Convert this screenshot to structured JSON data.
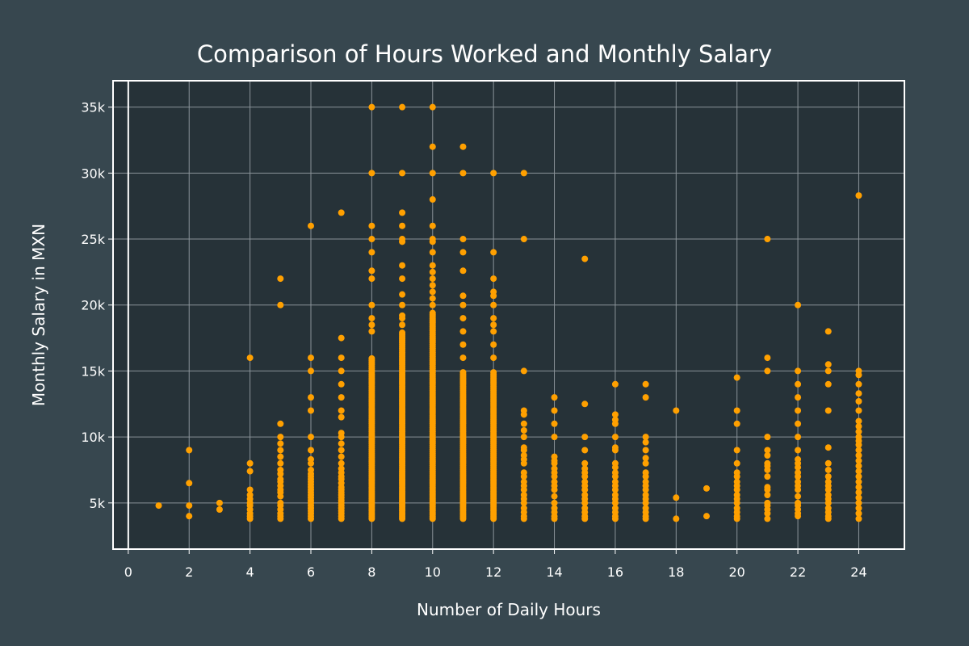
{
  "colors": {
    "page_background": "#37474f",
    "plot_background": "#263238",
    "marker": "#ffa000",
    "grid": "#8a9399",
    "axis": "#ffffff",
    "text": "#ffffff"
  },
  "chart_data": {
    "type": "scatter",
    "title": "Comparison of Hours Worked and Monthly Salary",
    "xlabel": "Number of Daily Hours",
    "ylabel": "Monthly Salary in MXN",
    "xlim": [
      -0.5,
      25.5
    ],
    "ylim": [
      1500,
      37000
    ],
    "x_ticks": [
      0,
      2,
      4,
      6,
      8,
      10,
      12,
      14,
      16,
      18,
      20,
      22,
      24
    ],
    "x_tick_labels": [
      "0",
      "2",
      "4",
      "6",
      "8",
      "10",
      "12",
      "14",
      "16",
      "18",
      "20",
      "22",
      "24"
    ],
    "y_ticks": [
      5000,
      10000,
      15000,
      20000,
      25000,
      30000,
      35000
    ],
    "y_tick_labels": [
      "5k",
      "10k",
      "15k",
      "20k",
      "25k",
      "30k",
      "35k"
    ],
    "grid": true,
    "legend": "none",
    "columns": [
      {
        "x": 1,
        "values": [
          4800
        ]
      },
      {
        "x": 2,
        "values": [
          4000,
          4800,
          6500,
          9000
        ]
      },
      {
        "x": 3,
        "values": [
          4500,
          5000
        ]
      },
      {
        "x": 4,
        "values": [
          3800,
          4000,
          4200,
          4500,
          4800,
          5000,
          5300,
          5600,
          6000,
          7400,
          8000,
          16000
        ]
      },
      {
        "x": 5,
        "values": [
          3800,
          4000,
          4200,
          4500,
          4800,
          5000,
          5500,
          5800,
          6000,
          6300,
          6600,
          6800,
          7200,
          7500,
          8000,
          8500,
          9000,
          9500,
          10000,
          11000,
          20000,
          22000
        ]
      },
      {
        "x": 6,
        "values": [
          3800,
          4000,
          4200,
          4400,
          4600,
          4800,
          5000,
          5200,
          5400,
          5600,
          5800,
          6000,
          6200,
          6400,
          6600,
          6800,
          7000,
          7200,
          7500,
          8000,
          8300,
          9000,
          10000,
          12000,
          13000,
          15000,
          16000,
          26000
        ]
      },
      {
        "x": 7,
        "values": [
          3800,
          4000,
          4200,
          4400,
          4600,
          4800,
          5000,
          5200,
          5400,
          5600,
          5800,
          6000,
          6200,
          6500,
          6800,
          7000,
          7300,
          7600,
          8000,
          8500,
          9000,
          9500,
          10000,
          10300,
          11500,
          12000,
          13000,
          14000,
          15000,
          16000,
          17500,
          27000
        ]
      },
      {
        "x": 8,
        "values": [
          18000,
          18500,
          19000,
          20000,
          22000,
          22600,
          24000,
          25000,
          26000,
          30000,
          35000
        ],
        "range": [
          3800,
          16000
        ]
      },
      {
        "x": 9,
        "values": [
          18500,
          19000,
          19200,
          20000,
          20800,
          22000,
          23000,
          24800,
          25000,
          26000,
          27000,
          30000,
          35000
        ],
        "range": [
          3800,
          18000
        ]
      },
      {
        "x": 10,
        "values": [
          20000,
          20500,
          21000,
          21500,
          22000,
          22500,
          23000,
          24000,
          24800,
          25000,
          26000,
          28000,
          30000,
          32000,
          35000
        ],
        "range": [
          3800,
          19500
        ]
      },
      {
        "x": 11,
        "values": [
          16000,
          17000,
          18000,
          19000,
          20000,
          20700,
          22600,
          24000,
          25000,
          30000,
          32000
        ],
        "range": [
          3800,
          15000
        ]
      },
      {
        "x": 12,
        "values": [
          16000,
          17000,
          18000,
          18500,
          19000,
          20000,
          20700,
          21000,
          22000,
          24000,
          30000
        ],
        "range": [
          3800,
          15000
        ]
      },
      {
        "x": 13,
        "values": [
          3800,
          4000,
          4300,
          4600,
          5000,
          5300,
          5600,
          6000,
          6300,
          6600,
          7000,
          7300,
          8000,
          8300,
          8600,
          9000,
          9200,
          10000,
          10500,
          11000,
          11700,
          12000,
          15000,
          25000,
          30000
        ]
      },
      {
        "x": 14,
        "values": [
          3800,
          4000,
          4300,
          4600,
          5000,
          5500,
          6000,
          6300,
          6600,
          7000,
          7300,
          7600,
          8000,
          8200,
          8500,
          10000,
          11000,
          12000,
          13000
        ]
      },
      {
        "x": 15,
        "values": [
          3800,
          4000,
          4300,
          4600,
          5000,
          5300,
          5600,
          6000,
          6300,
          6600,
          7000,
          7300,
          7600,
          8000,
          9000,
          10000,
          12500,
          23500
        ]
      },
      {
        "x": 16,
        "values": [
          3800,
          4000,
          4300,
          4600,
          5000,
          5300,
          5600,
          6000,
          6300,
          6600,
          7000,
          7300,
          7700,
          8000,
          9000,
          9200,
          10000,
          11000,
          11300,
          11700,
          14000
        ]
      },
      {
        "x": 17,
        "values": [
          3800,
          4000,
          4300,
          4600,
          5000,
          5300,
          5600,
          6000,
          6300,
          6600,
          7000,
          7300,
          8000,
          8400,
          9000,
          9600,
          10000,
          13000,
          14000
        ]
      },
      {
        "x": 18,
        "values": [
          3800,
          5400,
          12000
        ]
      },
      {
        "x": 19,
        "values": [
          4000,
          6100
        ]
      },
      {
        "x": 20,
        "values": [
          3800,
          4000,
          4300,
          4600,
          5000,
          5300,
          5600,
          6000,
          6300,
          6600,
          7000,
          7300,
          8000,
          9000,
          11000,
          12000,
          14500
        ]
      },
      {
        "x": 21,
        "values": [
          3800,
          4200,
          4500,
          4800,
          5000,
          5600,
          6000,
          6200,
          7000,
          7500,
          7800,
          8000,
          8600,
          9000,
          10000,
          15000,
          16000,
          25000
        ]
      },
      {
        "x": 22,
        "values": [
          4000,
          4200,
          4500,
          4800,
          5000,
          5500,
          6000,
          6300,
          6600,
          7000,
          7300,
          7700,
          8000,
          8300,
          9000,
          10000,
          11000,
          12000,
          13000,
          14000,
          15000,
          20000
        ]
      },
      {
        "x": 23,
        "values": [
          3800,
          4000,
          4300,
          4600,
          5000,
          5300,
          5600,
          6000,
          6300,
          6600,
          7000,
          7500,
          8000,
          9200,
          12000,
          14000,
          15000,
          15500,
          18000
        ]
      },
      {
        "x": 24,
        "values": [
          3800,
          4200,
          4600,
          5000,
          5400,
          5800,
          6200,
          6600,
          7000,
          7400,
          7800,
          8200,
          8600,
          9000,
          9400,
          9700,
          10000,
          10400,
          10800,
          11200,
          12000,
          12700,
          13300,
          14000,
          14700,
          15000,
          28300
        ]
      }
    ]
  }
}
